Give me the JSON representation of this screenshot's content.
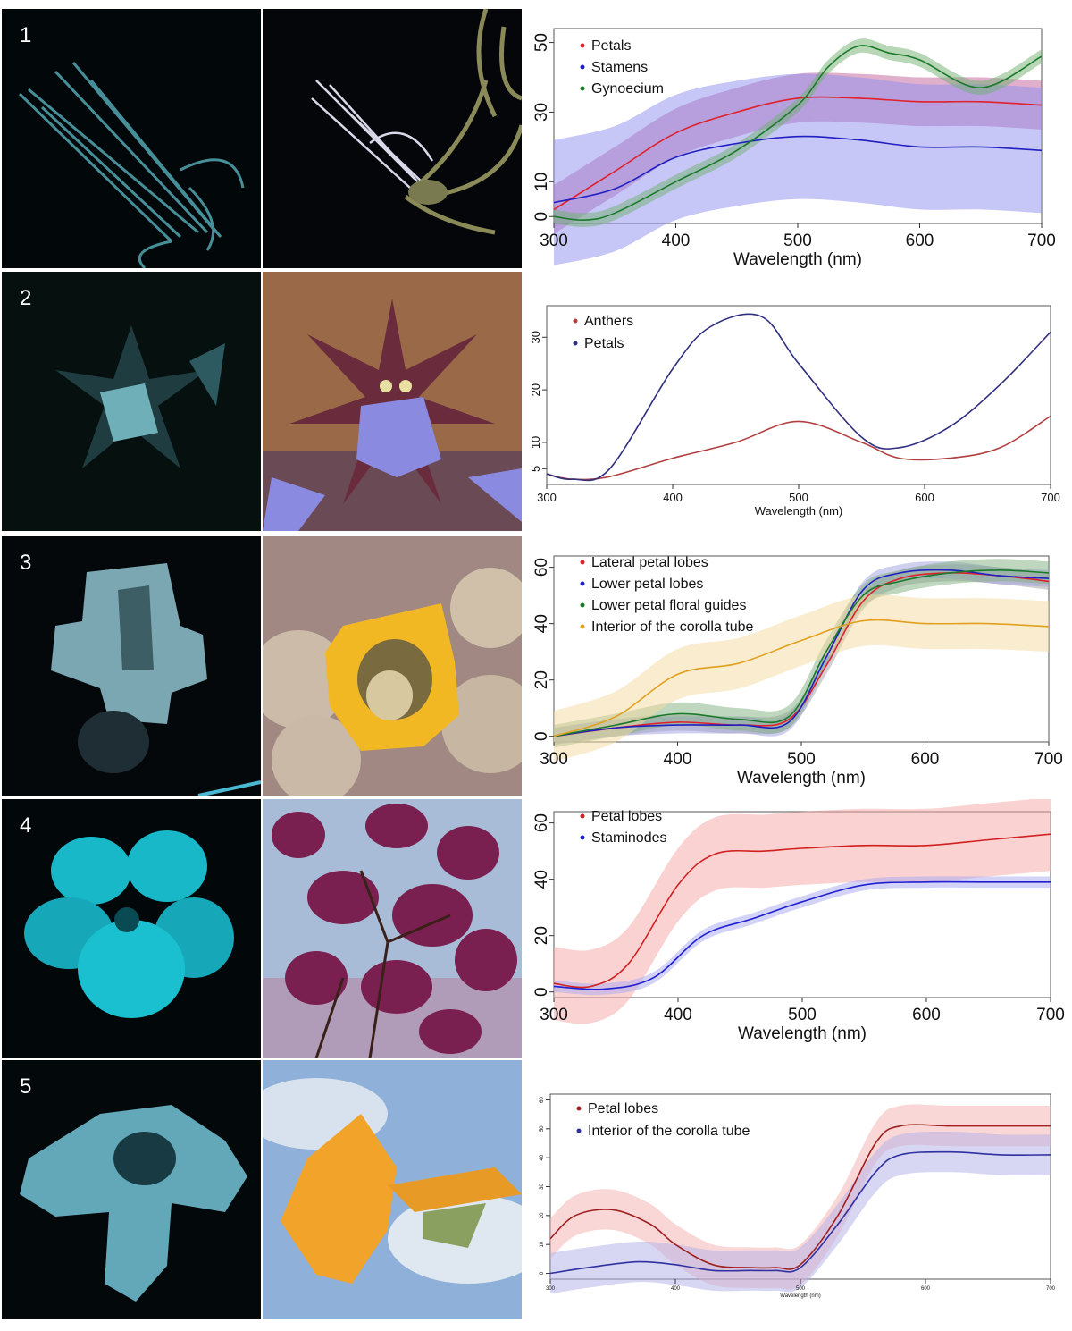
{
  "panels": [
    {
      "number": "1",
      "uv_photo": {
        "subject": "flower-stamens-uv",
        "tint": "#3a8a95"
      },
      "color_photo": {
        "subject": "flower-stamens-visible",
        "tint": "#c9c9a8"
      }
    },
    {
      "number": "2",
      "uv_photo": {
        "subject": "star-flower-uv",
        "tint": "#4a9aa5"
      },
      "color_photo": {
        "subject": "star-flower-visible",
        "tint": "#7b7fd0"
      }
    },
    {
      "number": "3",
      "uv_photo": {
        "subject": "bell-flower-uv",
        "tint": "#6aa8b3"
      },
      "color_photo": {
        "subject": "yellow-flower-visible",
        "tint": "#f0b82a"
      }
    },
    {
      "number": "4",
      "uv_photo": {
        "subject": "trumpet-flower-uv",
        "tint": "#18c8d8"
      },
      "color_photo": {
        "subject": "purple-flowers-visible",
        "tint": "#8a2a5a"
      }
    },
    {
      "number": "5",
      "uv_photo": {
        "subject": "orange-flower-uv",
        "tint": "#5fb0c2"
      },
      "color_photo": {
        "subject": "orange-flower-visible",
        "tint": "#f2a42a"
      }
    }
  ],
  "chart_data": [
    {
      "type": "line",
      "xlabel": "Wavelength (nm)",
      "ylabel": "",
      "xlim": [
        300,
        700
      ],
      "ylim": [
        -2,
        54
      ],
      "xticks": [
        "300",
        "400",
        "500",
        "600",
        "700"
      ],
      "yticks": [
        "0",
        "10",
        "30",
        "50"
      ],
      "ytick_values": [
        0,
        10,
        30,
        50
      ],
      "legend_position": "top-left",
      "series": [
        {
          "name": "Petals",
          "color": "#e0202a",
          "band_color": "#c0609a",
          "band": 7,
          "x": [
            300,
            350,
            400,
            450,
            500,
            550,
            600,
            650,
            700
          ],
          "y": [
            2,
            13,
            24,
            30,
            34,
            34,
            33,
            33,
            32
          ]
        },
        {
          "name": "Stamens",
          "color": "#2020c0",
          "band_color": "#9090f0",
          "band": 18,
          "x": [
            300,
            350,
            400,
            450,
            500,
            550,
            600,
            650,
            700
          ],
          "y": [
            4,
            8,
            17,
            21,
            23,
            22,
            20,
            20,
            19
          ]
        },
        {
          "name": "Gynoecium",
          "color": "#1a7a2a",
          "band_color": "#70b070",
          "band": 2,
          "x": [
            300,
            325,
            350,
            400,
            450,
            500,
            525,
            550,
            575,
            600,
            650,
            700
          ],
          "y": [
            0,
            -1,
            1,
            10,
            19,
            32,
            43,
            49,
            47,
            45,
            37,
            46
          ]
        }
      ]
    },
    {
      "type": "line",
      "xlabel": "Wavelength (nm)",
      "ylabel": "",
      "xlim": [
        300,
        700
      ],
      "ylim": [
        2,
        36
      ],
      "xticks": [
        "300",
        "400",
        "500",
        "600",
        "700"
      ],
      "yticks": [
        "5",
        "10",
        "20",
        "30"
      ],
      "ytick_values": [
        5,
        10,
        20,
        30
      ],
      "legend_position": "top-left",
      "series": [
        {
          "name": "Anthers",
          "color": "#b04040",
          "band_color": "",
          "band": 0,
          "x": [
            300,
            320,
            350,
            400,
            450,
            500,
            550,
            580,
            620,
            660,
            700
          ],
          "y": [
            4,
            3,
            3.5,
            7,
            10,
            14,
            10,
            7,
            7,
            9,
            15
          ]
        },
        {
          "name": "Petals",
          "color": "#303080",
          "band_color": "",
          "band": 0,
          "x": [
            300,
            320,
            350,
            400,
            430,
            470,
            500,
            550,
            580,
            620,
            660,
            700
          ],
          "y": [
            4,
            3,
            5,
            24,
            32,
            34,
            25,
            11,
            9,
            13,
            21,
            31
          ]
        }
      ]
    },
    {
      "type": "line",
      "xlabel": "Wavelength (nm)",
      "ylabel": "",
      "xlim": [
        300,
        700
      ],
      "ylim": [
        -2,
        64
      ],
      "xticks": [
        "300",
        "400",
        "500",
        "600",
        "700"
      ],
      "yticks": [
        "0",
        "20",
        "40",
        "60"
      ],
      "ytick_values": [
        0,
        20,
        40,
        60
      ],
      "legend_position": "top-left",
      "series": [
        {
          "name": "Lateral petal lobes",
          "color": "#e0202a",
          "band_color": "#a0a0a0",
          "band": 3,
          "x": [
            300,
            350,
            400,
            450,
            490,
            520,
            550,
            580,
            620,
            660,
            700
          ],
          "y": [
            0,
            3,
            5,
            4,
            6,
            25,
            48,
            56,
            58,
            57,
            55
          ]
        },
        {
          "name": "Lower petal lobes",
          "color": "#2020c0",
          "band_color": "#a0a0e0",
          "band": 3,
          "x": [
            300,
            350,
            400,
            450,
            490,
            520,
            550,
            580,
            620,
            660,
            700
          ],
          "y": [
            0,
            3,
            4,
            4,
            5,
            28,
            52,
            58,
            59,
            57,
            56
          ]
        },
        {
          "name": "Lower petal floral guides",
          "color": "#1a7a2a",
          "band_color": "#80b080",
          "band": 4,
          "x": [
            300,
            350,
            400,
            450,
            490,
            520,
            550,
            580,
            620,
            660,
            700
          ],
          "y": [
            0,
            4,
            8,
            6,
            7,
            30,
            50,
            55,
            58,
            59,
            58
          ]
        },
        {
          "name": "Interior of the corolla tube",
          "color": "#e0a020",
          "band_color": "#f5d9a0",
          "band": 9,
          "x": [
            300,
            350,
            400,
            450,
            500,
            550,
            600,
            650,
            700
          ],
          "y": [
            0,
            7,
            22,
            26,
            34,
            41,
            40,
            40,
            39
          ]
        }
      ]
    },
    {
      "type": "line",
      "xlabel": "Wavelength (nm)",
      "ylabel": "",
      "xlim": [
        300,
        700
      ],
      "ylim": [
        -2,
        64
      ],
      "xticks": [
        "300",
        "400",
        "500",
        "600",
        "700"
      ],
      "yticks": [
        "0",
        "20",
        "40",
        "60"
      ],
      "ytick_values": [
        0,
        20,
        40,
        60
      ],
      "legend_position": "top-left",
      "series": [
        {
          "name": "Petal lobes",
          "color": "#d02020",
          "band_color": "#f5a5a5",
          "band": 13,
          "x": [
            300,
            330,
            360,
            400,
            430,
            470,
            500,
            550,
            600,
            650,
            700
          ],
          "y": [
            3,
            2,
            10,
            38,
            49,
            50,
            51,
            52,
            52,
            54,
            56
          ]
        },
        {
          "name": "Staminodes",
          "color": "#2020d0",
          "band_color": "#a8a8f0",
          "band": 2,
          "x": [
            300,
            340,
            380,
            420,
            460,
            500,
            550,
            600,
            650,
            700
          ],
          "y": [
            2,
            1,
            5,
            20,
            26,
            32,
            38,
            39,
            39,
            39
          ]
        }
      ]
    },
    {
      "type": "line",
      "xlabel": "Wavelength (nm)",
      "ylabel": "",
      "xlim": [
        300,
        700
      ],
      "ylim": [
        -2,
        62
      ],
      "xticks": [
        "300",
        "400",
        "500",
        "600",
        "700"
      ],
      "yticks": [
        "0",
        "10",
        "20",
        "30",
        "40",
        "50",
        "60"
      ],
      "ytick_values": [
        0,
        10,
        20,
        30,
        40,
        50,
        60
      ],
      "legend_position": "top-left",
      "series": [
        {
          "name": "Petal lobes",
          "color": "#a02020",
          "band_color": "#f5b0b0",
          "band": 7,
          "x": [
            300,
            320,
            350,
            380,
            400,
            430,
            460,
            480,
            500,
            530,
            560,
            580,
            620,
            660,
            700
          ],
          "y": [
            12,
            20,
            22,
            17,
            10,
            3,
            2,
            2,
            3,
            20,
            45,
            51,
            51,
            51,
            51
          ]
        },
        {
          "name": "Interior of the corolla tube",
          "color": "#3030a0",
          "band_color": "#b0b0e8",
          "band": 7,
          "x": [
            300,
            330,
            370,
            400,
            430,
            460,
            480,
            500,
            530,
            560,
            580,
            620,
            660,
            700
          ],
          "y": [
            0,
            2,
            4,
            3,
            1,
            1,
            1,
            2,
            17,
            35,
            41,
            42,
            41,
            41
          ]
        }
      ]
    }
  ]
}
